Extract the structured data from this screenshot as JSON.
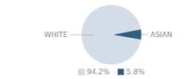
{
  "chart_data": {
    "type": "pie",
    "categories": [
      "WHITE",
      "ASIAN"
    ],
    "values": [
      94.2,
      5.8
    ],
    "value_labels": [
      "94.2%",
      "5.8%"
    ],
    "colors": [
      "#d4dce8",
      "#2e5f7e"
    ],
    "legend": "bottom"
  }
}
